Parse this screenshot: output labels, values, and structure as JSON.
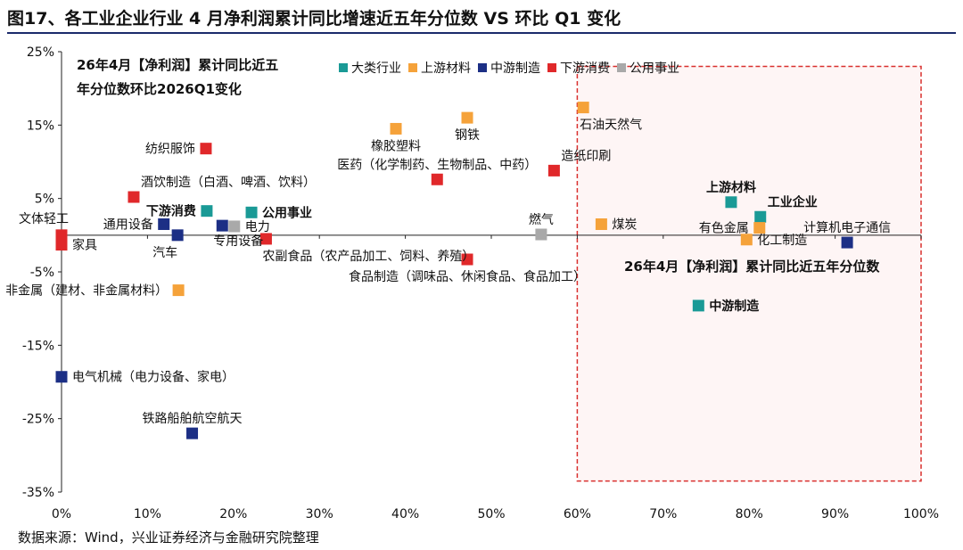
{
  "figure": {
    "title": "图17、各工业企业行业 4 月净利润累计同比增速近五年分位数  VS  环比 Q1 变化",
    "source": "数据来源：Wind，兴业证券经济与金融研究院整理"
  },
  "chart_data": {
    "type": "scatter",
    "title_line1": "26年4月【净利润】累计同比近五",
    "title_line2": "年分位数环比2026Q1变化",
    "quadrant_label": "26年4月【净利润】累计同比近五年分位数",
    "xlim": [
      0,
      100
    ],
    "ylim": [
      -35,
      25
    ],
    "x_ticks": [
      "0%",
      "10%",
      "20%",
      "30%",
      "40%",
      "50%",
      "60%",
      "70%",
      "80%",
      "90%",
      "100%"
    ],
    "y_ticks": [
      "25%",
      "15%",
      "5%",
      "-5%",
      "-15%",
      "-25%",
      "-35%"
    ],
    "legend": [
      {
        "name": "大类行业",
        "color": "#1a9a96"
      },
      {
        "name": "上游材料",
        "color": "#f5a23a"
      },
      {
        "name": "中游制造",
        "color": "#1c2f85"
      },
      {
        "name": "下游消费",
        "color": "#e0282a"
      },
      {
        "name": "公用事业",
        "color": "#a9a9a9"
      }
    ],
    "points": [
      {
        "label": "文体轻工",
        "x": 0.0,
        "y": 0.0,
        "group": "下游消费",
        "color": "#e0282a",
        "bold": false,
        "lpos": "ul"
      },
      {
        "label": "家具",
        "x": 0.0,
        "y": -1.3,
        "group": "下游消费",
        "color": "#e0282a",
        "bold": false,
        "lpos": "r"
      },
      {
        "label": "纺织服饰",
        "x": 16.8,
        "y": 11.8,
        "group": "下游消费",
        "color": "#e0282a",
        "bold": false,
        "lpos": "l"
      },
      {
        "label": "酒饮制造（白酒、啤酒、饮料）",
        "x": 8.4,
        "y": 5.2,
        "group": "下游消费",
        "color": "#e0282a",
        "bold": false,
        "lpos": "ur"
      },
      {
        "label": "下游消费",
        "x": 16.9,
        "y": 3.3,
        "group": "大类行业",
        "color": "#1a9a96",
        "bold": true,
        "lpos": "l"
      },
      {
        "label": "通用设备",
        "x": 11.9,
        "y": 1.5,
        "group": "中游制造",
        "color": "#1c2f85",
        "bold": false,
        "lpos": "l"
      },
      {
        "label": "汽车",
        "x": 13.5,
        "y": 0.0,
        "group": "中游制造",
        "color": "#1c2f85",
        "bold": false,
        "lpos": "lb"
      },
      {
        "label": "专用设备",
        "x": 18.7,
        "y": 1.3,
        "group": "中游制造",
        "color": "#1c2f85",
        "bold": false,
        "lpos": "bl"
      },
      {
        "label": "电力",
        "x": 20.1,
        "y": 1.2,
        "group": "公用事业",
        "color": "#a9a9a9",
        "bold": false,
        "lpos": "r"
      },
      {
        "label": "公用事业",
        "x": 22.1,
        "y": 3.1,
        "group": "大类行业",
        "color": "#1a9a96",
        "bold": true,
        "lpos": "r"
      },
      {
        "label": "农副食品（农产品加工、饲料、养殖）",
        "x": 23.8,
        "y": -0.5,
        "group": "下游消费",
        "color": "#e0282a",
        "bold": false,
        "lpos": "br"
      },
      {
        "label": "非金属（建材、非金属材料）",
        "x": 13.6,
        "y": -7.5,
        "group": "上游材料",
        "color": "#f5a23a",
        "bold": false,
        "lpos": "l"
      },
      {
        "label": "橡胶塑料",
        "x": 38.9,
        "y": 14.5,
        "group": "上游材料",
        "color": "#f5a23a",
        "bold": false,
        "lpos": "b"
      },
      {
        "label": "钢铁",
        "x": 47.2,
        "y": 16.0,
        "group": "上游材料",
        "color": "#f5a23a",
        "bold": false,
        "lpos": "b"
      },
      {
        "label": "医药（化学制药、生物制品、中药）",
        "x": 43.7,
        "y": 7.6,
        "group": "下游消费",
        "color": "#e0282a",
        "bold": false,
        "lpos": "u"
      },
      {
        "label": "造纸印刷",
        "x": 57.3,
        "y": 8.8,
        "group": "下游消费",
        "color": "#e0282a",
        "bold": false,
        "lpos": "ur"
      },
      {
        "label": "石油天然气",
        "x": 60.7,
        "y": 17.4,
        "group": "上游材料",
        "color": "#f5a23a",
        "bold": false,
        "lpos": "br"
      },
      {
        "label": "燃气",
        "x": 55.8,
        "y": 0.1,
        "group": "公用事业",
        "color": "#a9a9a9",
        "bold": false,
        "lpos": "u"
      },
      {
        "label": "食品制造（调味品、休闲食品、食品加工）",
        "x": 47.2,
        "y": -3.3,
        "group": "下游消费",
        "color": "#e0282a",
        "bold": false,
        "lpos": "b"
      },
      {
        "label": "煤炭",
        "x": 62.8,
        "y": 1.5,
        "group": "上游材料",
        "color": "#f5a23a",
        "bold": false,
        "lpos": "r"
      },
      {
        "label": "上游材料",
        "x": 77.9,
        "y": 4.5,
        "group": "大类行业",
        "color": "#1a9a96",
        "bold": true,
        "lpos": "u"
      },
      {
        "label": "工业企业",
        "x": 81.3,
        "y": 2.5,
        "group": "大类行业",
        "color": "#1a9a96",
        "bold": true,
        "lpos": "ur"
      },
      {
        "label": "有色金属",
        "x": 81.2,
        "y": 1.0,
        "group": "上游材料",
        "color": "#f5a23a",
        "bold": false,
        "lpos": "l"
      },
      {
        "label": "化工制造",
        "x": 79.7,
        "y": -0.6,
        "group": "上游材料",
        "color": "#f5a23a",
        "bold": false,
        "lpos": "r"
      },
      {
        "label": "计算机电子通信",
        "x": 91.4,
        "y": -1.0,
        "group": "中游制造",
        "color": "#1c2f85",
        "bold": false,
        "lpos": "u"
      },
      {
        "label": "中游制造",
        "x": 74.1,
        "y": -9.6,
        "group": "大类行业",
        "color": "#1a9a96",
        "bold": true,
        "lpos": "r"
      },
      {
        "label": "电气机械（电力设备、家电）",
        "x": 0.0,
        "y": -19.3,
        "group": "中游制造",
        "color": "#1c2f85",
        "bold": false,
        "lpos": "r"
      },
      {
        "label": "铁路船舶航空航天",
        "x": 15.2,
        "y": -27.0,
        "group": "中游制造",
        "color": "#1c2f85",
        "bold": false,
        "lpos": "u"
      }
    ],
    "highlight_region": {
      "x": [
        60.0,
        100.0
      ],
      "y": [
        -33.5,
        23.0
      ]
    },
    "grid": false,
    "legend_position": "top"
  }
}
